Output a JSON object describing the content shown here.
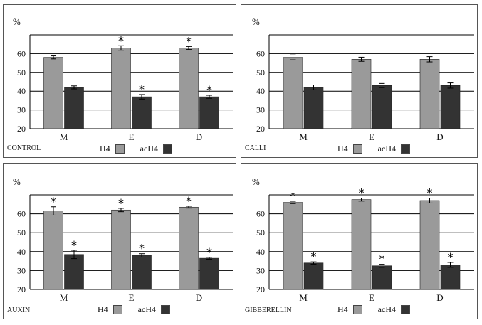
{
  "colors": {
    "H4": "#9a9a9a",
    "acH4": "#333333",
    "grid": "#000000"
  },
  "legend": {
    "h4": "H4",
    "ach4": "acH4"
  },
  "chart_data": [
    {
      "type": "bar",
      "panel": "CONTROL",
      "ylabel": "%",
      "ylim": [
        20,
        70
      ],
      "yticks": [
        "20",
        "30",
        "40",
        "50",
        "60"
      ],
      "categories": [
        "M",
        "E",
        "D"
      ],
      "series": [
        {
          "name": "H4",
          "values": [
            58,
            63,
            63
          ],
          "errors": [
            0.8,
            1.2,
            0.8
          ],
          "significant": [
            false,
            true,
            true
          ]
        },
        {
          "name": "acH4",
          "values": [
            42,
            37,
            37
          ],
          "errors": [
            0.8,
            1.2,
            0.8
          ],
          "significant": [
            false,
            true,
            true
          ]
        }
      ]
    },
    {
      "type": "bar",
      "panel": "CALLI",
      "ylabel": "%",
      "ylim": [
        20,
        70
      ],
      "yticks": [
        "20",
        "30",
        "40",
        "50",
        "60"
      ],
      "categories": [
        "M",
        "E",
        "D"
      ],
      "series": [
        {
          "name": "H4",
          "values": [
            58,
            57,
            57
          ],
          "errors": [
            1.3,
            1.1,
            1.4
          ],
          "significant": [
            false,
            false,
            false
          ]
        },
        {
          "name": "acH4",
          "values": [
            42,
            43,
            43
          ],
          "errors": [
            1.3,
            1.1,
            1.4
          ],
          "significant": [
            false,
            false,
            false
          ]
        }
      ]
    },
    {
      "type": "bar",
      "panel": "AUXIN",
      "ylabel": "%",
      "ylim": [
        20,
        70
      ],
      "yticks": [
        "20",
        "30",
        "40",
        "50",
        "60"
      ],
      "categories": [
        "M",
        "E",
        "D"
      ],
      "series": [
        {
          "name": "H4",
          "values": [
            61.5,
            62,
            63.5
          ],
          "errors": [
            2.2,
            0.9,
            0.5
          ],
          "significant": [
            true,
            true,
            true
          ]
        },
        {
          "name": "acH4",
          "values": [
            38.5,
            38,
            36.5
          ],
          "errors": [
            2.2,
            0.9,
            0.5
          ],
          "significant": [
            true,
            true,
            true
          ]
        }
      ]
    },
    {
      "type": "bar",
      "panel": "GIBBERELLIN",
      "ylabel": "%",
      "ylim": [
        20,
        70
      ],
      "yticks": [
        "20",
        "30",
        "40",
        "50",
        "60"
      ],
      "categories": [
        "M",
        "E",
        "D"
      ],
      "series": [
        {
          "name": "H4",
          "values": [
            66,
            67.5,
            67
          ],
          "errors": [
            0.6,
            0.8,
            1.3
          ],
          "significant": [
            true,
            true,
            true
          ]
        },
        {
          "name": "acH4",
          "values": [
            34,
            32.5,
            33
          ],
          "errors": [
            0.6,
            0.8,
            1.3
          ],
          "significant": [
            true,
            true,
            true
          ]
        }
      ]
    }
  ]
}
